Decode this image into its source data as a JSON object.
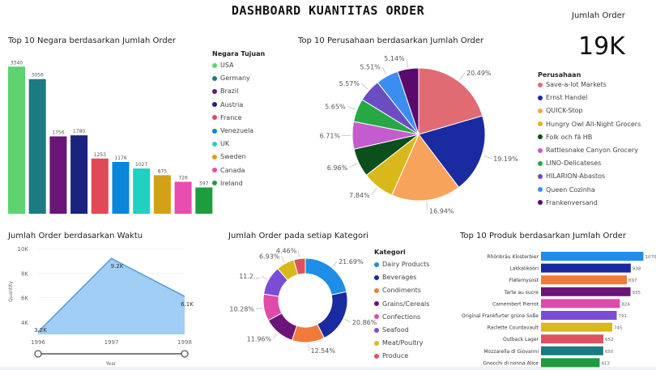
{
  "dashboard_title": "DASHBOARD KUANTITAS ORDER",
  "kpi": {
    "label": "Jumlah Order",
    "value": "19K"
  },
  "colors": {
    "accent_line": "#5b9bd5",
    "area_fill": "#8fc5f2"
  },
  "chart_data": [
    {
      "id": "countries",
      "type": "bar",
      "title": "Top 10 Negara berdasarkan Jumlah Order",
      "legend_title": "Negara Tujuan",
      "categories": [
        "USA",
        "Germany",
        "Brazil",
        "Austria",
        "France",
        "Venezuela",
        "UK",
        "Sweden",
        "Canada",
        "Ireland"
      ],
      "values": [
        3340,
        3056,
        1756,
        1780,
        1253,
        1176,
        1027,
        875,
        726,
        597
      ],
      "value_labels": [
        "3340",
        "3056",
        "1756",
        "1780",
        "1253",
        "1176",
        "1027",
        "875",
        "726",
        "597"
      ],
      "colors": [
        "#5fd36d",
        "#1c7a80",
        "#6a1577",
        "#1a237e",
        "#e04a56",
        "#0a87d8",
        "#20d0c0",
        "#d4a017",
        "#e84db0",
        "#1e9c3e"
      ],
      "ylim": [
        0,
        3400
      ]
    },
    {
      "id": "companies",
      "type": "pie",
      "title": "Top 10 Perusahaan berdasarkan Jumlah Order",
      "legend_title": "Perusahaan",
      "labels": [
        "Save-a-lot Markets",
        "Ernst Handel",
        "QUICK-Stop",
        "Hungry Owl All-Night Grocers",
        "Folk och fä HB",
        "Rattlesnake Canyon Grocery",
        "LINO-Delicateses",
        "HILARION-Abastos",
        "Queen Cozinha",
        "Frankenversand"
      ],
      "values": [
        20.49,
        19.19,
        16.94,
        7.84,
        6.96,
        6.71,
        5.65,
        5.57,
        5.51,
        5.14
      ],
      "value_labels": [
        "20.49%",
        "19.19%",
        "16.94%",
        "7.84%",
        "6.96%",
        "6.71%",
        "5.65%",
        "5.57%",
        "5.51%",
        "5.14%"
      ],
      "colors": [
        "#e06b73",
        "#1a2aa0",
        "#f7a35c",
        "#d9b81c",
        "#0b4f1c",
        "#c45ccf",
        "#28a745",
        "#6a4dc2",
        "#3a8ef0",
        "#5a0a6d"
      ]
    },
    {
      "id": "time",
      "type": "area",
      "title": "Jumlah Order berdasarkan Waktu",
      "xlabel": "Year",
      "ylabel": "Quantity",
      "x": [
        1996,
        1997,
        1998
      ],
      "x_ticks": [
        "1996",
        "1997",
        "1998"
      ],
      "values": [
        3200,
        9200,
        6100
      ],
      "value_labels": [
        "3.2K",
        "9.2K",
        "6.1K"
      ],
      "ylim": [
        3000,
        10000
      ],
      "y_ticks": [
        {
          "v": 4000,
          "t": "4K"
        },
        {
          "v": 6000,
          "t": "6K"
        },
        {
          "v": 8000,
          "t": "8K"
        },
        {
          "v": 10000,
          "t": "10K"
        }
      ]
    },
    {
      "id": "categories",
      "type": "pie",
      "donut": true,
      "title": "Jumlah Order pada setiap Kategori",
      "legend_title": "Kategori",
      "labels": [
        "Dairy Products",
        "Beverages",
        "Condiments",
        "Grains/Cereals",
        "Confections",
        "Seafood",
        "Meat/Poultry",
        "Produce"
      ],
      "values": [
        21.69,
        20.86,
        12.54,
        11.96,
        10.28,
        11.2,
        6.93,
        4.46
      ],
      "value_labels": [
        "21.69%",
        "20.86%",
        "12.54%",
        "11.96%",
        "10.28%",
        "11.2...",
        "6.93%",
        "4.46%"
      ],
      "colors": [
        "#1e8ee8",
        "#1a2aa0",
        "#f07a3a",
        "#6a1577",
        "#e04aa8",
        "#7b4dd6",
        "#d9b81c",
        "#e05060"
      ]
    },
    {
      "id": "products",
      "type": "bar",
      "orientation": "horizontal",
      "title": "Top 10 Produk berdasarkan Jumlah Order",
      "categories": [
        "Rhönbräu Klosterbier",
        "Lakkalikööri",
        "Fløtemysost",
        "Tarte au sucre",
        "Camembert Pierrot",
        "Original Frankfurter grüne Soße",
        "Raclette Courdavault",
        "Outback Lager",
        "Mozzarella di Giovanni",
        "Gnocchi di nonna Alice"
      ],
      "values": [
        1070,
        938,
        897,
        935,
        824,
        791,
        745,
        652,
        650,
        613
      ],
      "value_labels": [
        "1070",
        "938",
        "897",
        "935",
        "824",
        "791",
        "745",
        "652",
        "650",
        "613"
      ],
      "colors": [
        "#1e8ee8",
        "#1a2aa0",
        "#f07a3a",
        "#6a1577",
        "#e04aa8",
        "#7b4dd6",
        "#d9b81c",
        "#e05060",
        "#1c7a80",
        "#1e9c3e"
      ],
      "xlim": [
        0,
        1100
      ]
    }
  ]
}
